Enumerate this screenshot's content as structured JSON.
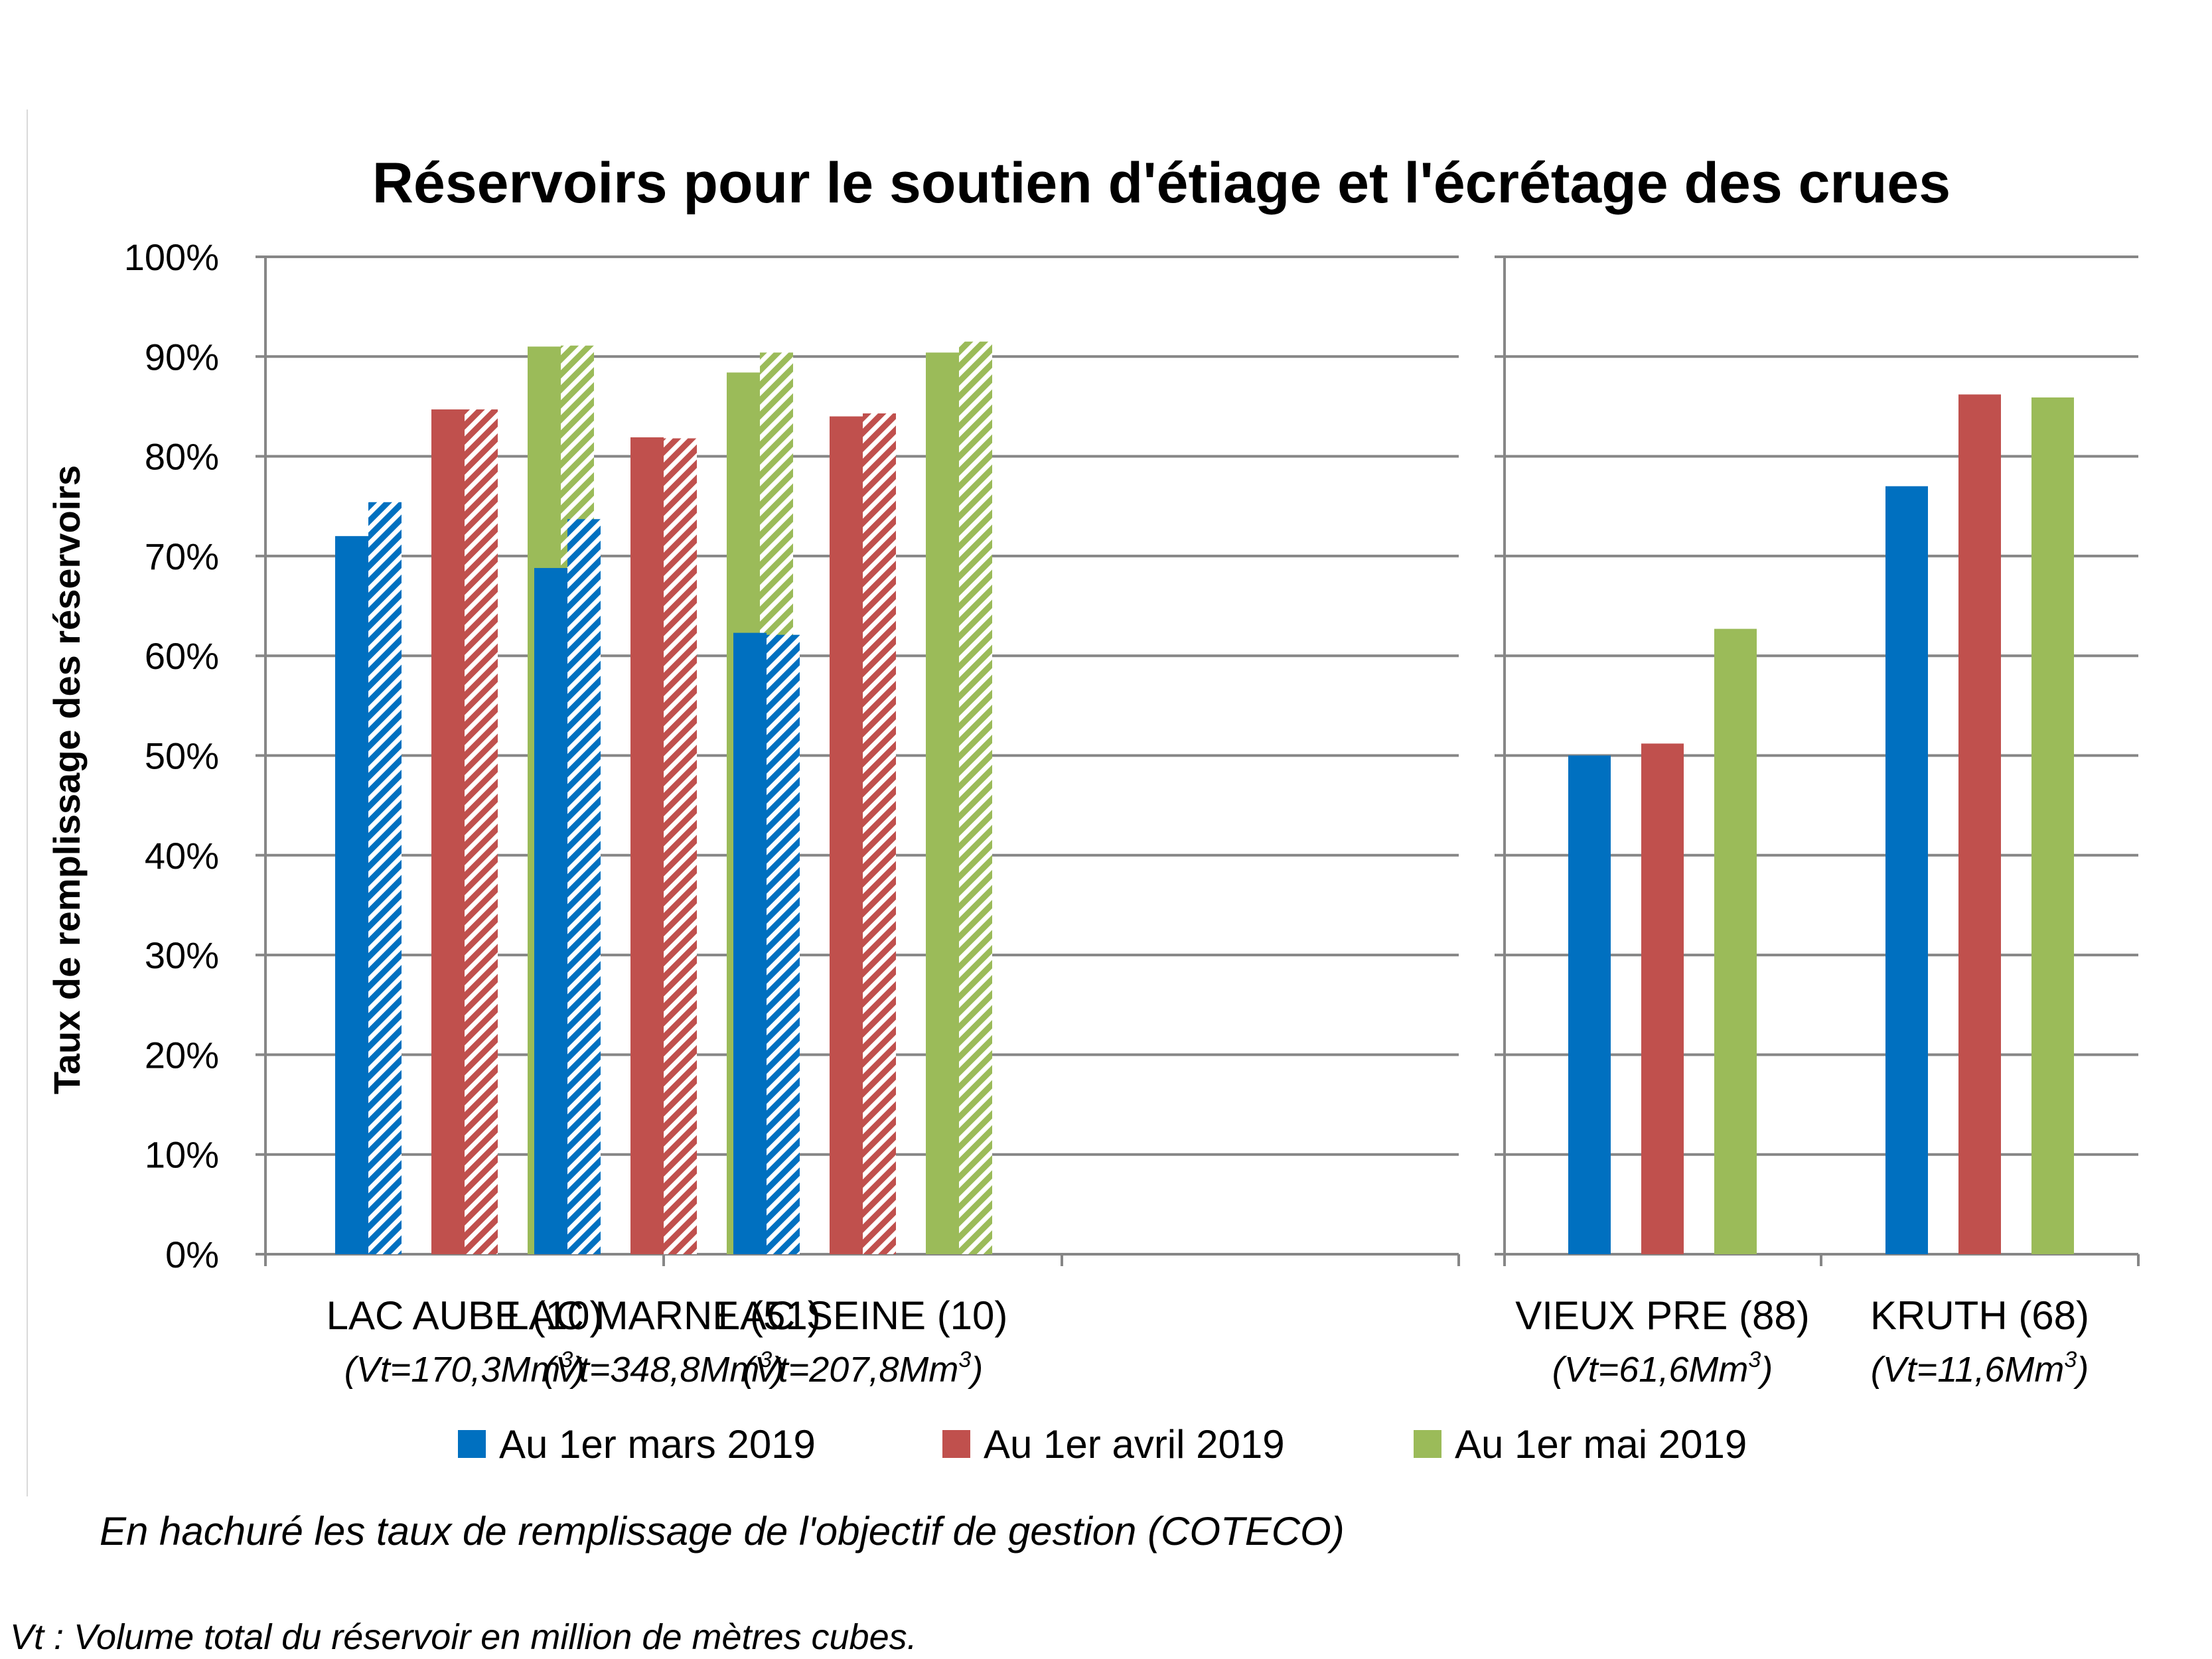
{
  "chart_data": {
    "type": "bar",
    "title": "Réservoirs pour le soutien d'étiage et l'écrétage des crues",
    "ylabel": "Taux de remplissage des réservoirs",
    "ylim": [
      0,
      100
    ],
    "yticks": [
      0,
      10,
      20,
      30,
      40,
      50,
      60,
      70,
      80,
      90,
      100
    ],
    "ytick_labels": [
      "0%",
      "10%",
      "20%",
      "30%",
      "40%",
      "50%",
      "60%",
      "70%",
      "80%",
      "90%",
      "100%"
    ],
    "grid": true,
    "legend_position": "bottom",
    "panels": [
      {
        "categories": [
          {
            "name": "LAC AUBE (10)",
            "volume": "(Vt=170,3Mm",
            "volume_sup": "3",
            "volume_end": ")"
          },
          {
            "name": "LAC MARNE (51)",
            "volume": "(Vt=348,8Mm",
            "volume_sup": "3",
            "volume_end": ")"
          },
          {
            "name": "LAC SEINE (10)",
            "volume": "(Vt=207,8Mm",
            "volume_sup": "3",
            "volume_end": ")"
          }
        ],
        "observed": [
          [
            72,
            68.8,
            62.3
          ],
          [
            84.7,
            81.9,
            84.0
          ],
          [
            91.0,
            88.4,
            90.4
          ]
        ],
        "objective": [
          [
            75.4,
            73.7,
            62.1
          ],
          [
            84.7,
            81.8,
            84.3
          ],
          [
            91.1,
            90.4,
            91.5
          ]
        ]
      },
      {
        "categories": [
          {
            "name": "VIEUX PRE (88)",
            "volume": "(Vt=61,6Mm",
            "volume_sup": "3",
            "volume_end": ")"
          },
          {
            "name": "KRUTH (68)",
            "volume": "(Vt=11,6Mm",
            "volume_sup": "3",
            "volume_end": ")"
          }
        ],
        "observed": [
          [
            50.0,
            77.0
          ],
          [
            51.2,
            86.2
          ],
          [
            62.7,
            85.9
          ]
        ]
      }
    ],
    "series": [
      {
        "name": "Au 1er mars 2019",
        "color": "#0070c0"
      },
      {
        "name": "Au 1er avril 2019",
        "color": "#c0504d"
      },
      {
        "name": "Au 1er mai 2019",
        "color": "#9bbb59"
      }
    ],
    "note": "En hachuré les taux de remplissage de l'objectif de gestion (COTECO)",
    "footnote": "Vt : Volume total du réservoir en million de mètres cubes."
  }
}
